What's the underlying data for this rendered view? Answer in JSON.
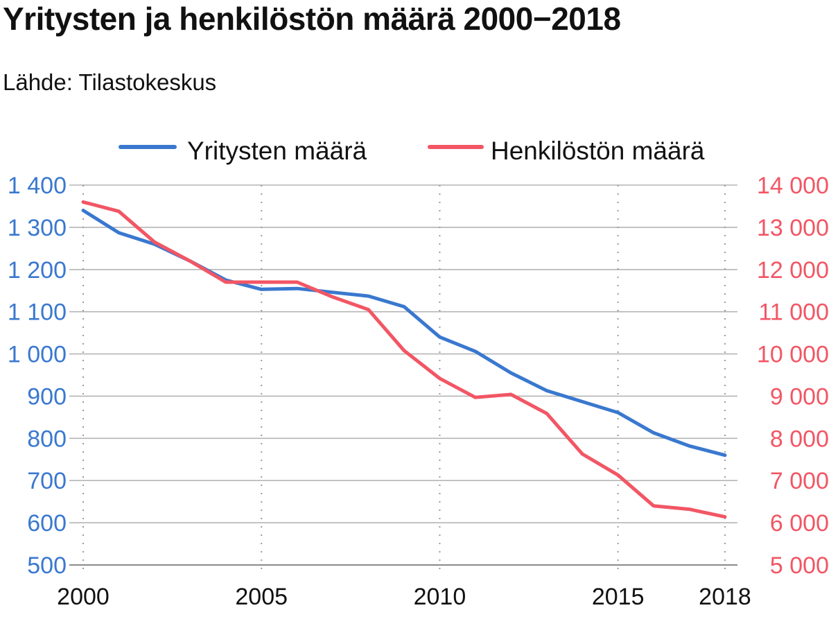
{
  "chart_data": {
    "type": "line",
    "title": "Yritysten ja henkilöstön määrä 2000−2018",
    "subtitle": "Lähde: Tilastokeskus",
    "x": [
      2000,
      2001,
      2002,
      2003,
      2004,
      2005,
      2006,
      2007,
      2008,
      2009,
      2010,
      2011,
      2012,
      2013,
      2014,
      2015,
      2016,
      2017,
      2018
    ],
    "x_ticks": [
      2000,
      2005,
      2010,
      2015,
      2018
    ],
    "x_tick_labels": [
      "2000",
      "2005",
      "2010",
      "2015",
      "2018"
    ],
    "xlim": [
      2000,
      2018
    ],
    "series": [
      {
        "name": "Yritysten määrä",
        "axis": "left",
        "color": "#3a78cf",
        "values": [
          1340,
          1287,
          1260,
          1220,
          1175,
          1153,
          1155,
          1146,
          1137,
          1112,
          1040,
          1006,
          955,
          913,
          887,
          861,
          813,
          782,
          760
        ]
      },
      {
        "name": "Henkilöstön määrä",
        "axis": "right",
        "color": "#f25664",
        "values": [
          13600,
          13380,
          12650,
          12200,
          11700,
          11700,
          11700,
          11350,
          11050,
          10080,
          9420,
          8970,
          9040,
          8590,
          7630,
          7130,
          6400,
          6320,
          6140
        ]
      }
    ],
    "y_left": {
      "lim": [
        500,
        1400
      ],
      "ticks": [
        500,
        600,
        700,
        800,
        900,
        1000,
        1100,
        1200,
        1300,
        1400
      ],
      "tick_labels": [
        "500",
        "600",
        "700",
        "800",
        "900",
        "1 000",
        "1 100",
        "1 200",
        "1 300",
        "1 400"
      ],
      "color": "#3a78cf"
    },
    "y_right": {
      "lim": [
        5000,
        14000
      ],
      "ticks": [
        5000,
        6000,
        7000,
        8000,
        9000,
        10000,
        11000,
        12000,
        13000,
        14000
      ],
      "tick_labels": [
        "5 000",
        "6 000",
        "7 000",
        "8 000",
        "9 000",
        "10 000",
        "11 000",
        "12 000",
        "13 000",
        "14 000"
      ],
      "color": "#f25664"
    },
    "grid": {
      "horizontal": true,
      "vertical_dotted_at": [
        2000,
        2005,
        2010,
        2015,
        2018
      ]
    },
    "legend": {
      "position": "top"
    }
  }
}
